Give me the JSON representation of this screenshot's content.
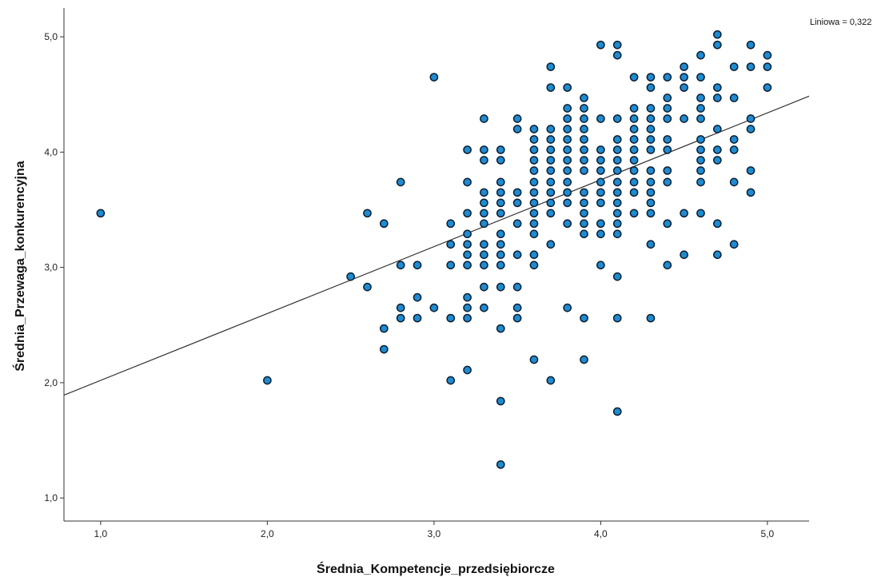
{
  "chart_data": {
    "type": "scatter",
    "xlabel": "Średnia_Kompetencje_przedsiębiorcze",
    "ylabel": "Średnia_Przewaga_konkurencyjna",
    "xlim": [
      0.78,
      5.25
    ],
    "ylim": [
      0.8,
      5.25
    ],
    "x_ticks": [
      "1,0",
      "2,0",
      "3,0",
      "4,0",
      "5,0"
    ],
    "y_ticks": [
      "1,0",
      "2,0",
      "3,0",
      "4,0",
      "5,0"
    ],
    "grid": false,
    "fit_line": {
      "label": "Liniowa = 0,322",
      "intercept": 1.44,
      "slope": 0.58
    },
    "marker_color": "#1f8bd0",
    "marker_edge": "#0a1f33",
    "line_color": "#333333",
    "points": [
      [
        1.0,
        3.47
      ],
      [
        2.0,
        2.02
      ],
      [
        2.5,
        2.92
      ],
      [
        2.6,
        3.47
      ],
      [
        2.6,
        2.83
      ],
      [
        2.7,
        3.38
      ],
      [
        2.7,
        2.47
      ],
      [
        2.7,
        2.29
      ],
      [
        2.8,
        3.74
      ],
      [
        2.8,
        3.02
      ],
      [
        2.8,
        2.65
      ],
      [
        2.8,
        2.56
      ],
      [
        2.9,
        3.02
      ],
      [
        2.9,
        2.74
      ],
      [
        2.9,
        2.56
      ],
      [
        3.0,
        4.65
      ],
      [
        3.0,
        2.65
      ],
      [
        3.1,
        3.38
      ],
      [
        3.1,
        3.2
      ],
      [
        3.1,
        3.02
      ],
      [
        3.1,
        2.56
      ],
      [
        3.1,
        2.02
      ],
      [
        3.2,
        4.02
      ],
      [
        3.2,
        3.74
      ],
      [
        3.2,
        3.47
      ],
      [
        3.2,
        3.29
      ],
      [
        3.2,
        3.2
      ],
      [
        3.2,
        3.11
      ],
      [
        3.2,
        3.02
      ],
      [
        3.2,
        2.74
      ],
      [
        3.2,
        2.65
      ],
      [
        3.2,
        2.56
      ],
      [
        3.2,
        2.11
      ],
      [
        3.3,
        4.29
      ],
      [
        3.3,
        4.02
      ],
      [
        3.3,
        3.93
      ],
      [
        3.3,
        3.65
      ],
      [
        3.3,
        3.56
      ],
      [
        3.3,
        3.47
      ],
      [
        3.3,
        3.38
      ],
      [
        3.3,
        3.2
      ],
      [
        3.3,
        3.11
      ],
      [
        3.3,
        3.02
      ],
      [
        3.3,
        2.83
      ],
      [
        3.3,
        2.65
      ],
      [
        3.4,
        4.02
      ],
      [
        3.4,
        3.93
      ],
      [
        3.4,
        3.74
      ],
      [
        3.4,
        3.65
      ],
      [
        3.4,
        3.56
      ],
      [
        3.4,
        3.47
      ],
      [
        3.4,
        3.29
      ],
      [
        3.4,
        3.2
      ],
      [
        3.4,
        3.11
      ],
      [
        3.4,
        3.02
      ],
      [
        3.4,
        2.83
      ],
      [
        3.4,
        2.47
      ],
      [
        3.4,
        1.84
      ],
      [
        3.4,
        1.29
      ],
      [
        3.5,
        4.29
      ],
      [
        3.5,
        4.2
      ],
      [
        3.5,
        3.65
      ],
      [
        3.5,
        3.56
      ],
      [
        3.5,
        3.38
      ],
      [
        3.5,
        3.11
      ],
      [
        3.5,
        2.83
      ],
      [
        3.5,
        2.65
      ],
      [
        3.5,
        2.56
      ],
      [
        3.6,
        4.2
      ],
      [
        3.6,
        4.11
      ],
      [
        3.6,
        4.02
      ],
      [
        3.6,
        3.93
      ],
      [
        3.6,
        3.84
      ],
      [
        3.6,
        3.74
      ],
      [
        3.6,
        3.65
      ],
      [
        3.6,
        3.56
      ],
      [
        3.6,
        3.47
      ],
      [
        3.6,
        3.38
      ],
      [
        3.6,
        3.29
      ],
      [
        3.6,
        3.11
      ],
      [
        3.6,
        3.02
      ],
      [
        3.6,
        2.2
      ],
      [
        3.7,
        4.74
      ],
      [
        3.7,
        4.56
      ],
      [
        3.7,
        4.2
      ],
      [
        3.7,
        4.11
      ],
      [
        3.7,
        4.02
      ],
      [
        3.7,
        3.93
      ],
      [
        3.7,
        3.84
      ],
      [
        3.7,
        3.74
      ],
      [
        3.7,
        3.65
      ],
      [
        3.7,
        3.56
      ],
      [
        3.7,
        3.47
      ],
      [
        3.7,
        3.2
      ],
      [
        3.7,
        2.02
      ],
      [
        3.8,
        4.56
      ],
      [
        3.8,
        4.38
      ],
      [
        3.8,
        4.29
      ],
      [
        3.8,
        4.2
      ],
      [
        3.8,
        4.11
      ],
      [
        3.8,
        4.02
      ],
      [
        3.8,
        3.93
      ],
      [
        3.8,
        3.84
      ],
      [
        3.8,
        3.74
      ],
      [
        3.8,
        3.65
      ],
      [
        3.8,
        3.56
      ],
      [
        3.8,
        3.38
      ],
      [
        3.8,
        2.65
      ],
      [
        3.9,
        4.47
      ],
      [
        3.9,
        4.38
      ],
      [
        3.9,
        4.29
      ],
      [
        3.9,
        4.2
      ],
      [
        3.9,
        4.11
      ],
      [
        3.9,
        4.02
      ],
      [
        3.9,
        3.93
      ],
      [
        3.9,
        3.84
      ],
      [
        3.9,
        3.65
      ],
      [
        3.9,
        3.56
      ],
      [
        3.9,
        3.47
      ],
      [
        3.9,
        3.38
      ],
      [
        3.9,
        3.29
      ],
      [
        3.9,
        2.56
      ],
      [
        3.9,
        2.2
      ],
      [
        4.0,
        4.93
      ],
      [
        4.0,
        4.29
      ],
      [
        4.0,
        4.02
      ],
      [
        4.0,
        3.93
      ],
      [
        4.0,
        3.84
      ],
      [
        4.0,
        3.74
      ],
      [
        4.0,
        3.65
      ],
      [
        4.0,
        3.56
      ],
      [
        4.0,
        3.38
      ],
      [
        4.0,
        3.29
      ],
      [
        4.0,
        3.02
      ],
      [
        4.1,
        4.93
      ],
      [
        4.1,
        4.84
      ],
      [
        4.1,
        4.29
      ],
      [
        4.1,
        4.11
      ],
      [
        4.1,
        4.02
      ],
      [
        4.1,
        3.93
      ],
      [
        4.1,
        3.84
      ],
      [
        4.1,
        3.74
      ],
      [
        4.1,
        3.65
      ],
      [
        4.1,
        3.56
      ],
      [
        4.1,
        3.47
      ],
      [
        4.1,
        3.38
      ],
      [
        4.1,
        3.29
      ],
      [
        4.1,
        2.92
      ],
      [
        4.1,
        2.56
      ],
      [
        4.1,
        1.75
      ],
      [
        4.2,
        4.65
      ],
      [
        4.2,
        4.38
      ],
      [
        4.2,
        4.29
      ],
      [
        4.2,
        4.2
      ],
      [
        4.2,
        4.11
      ],
      [
        4.2,
        4.02
      ],
      [
        4.2,
        3.93
      ],
      [
        4.2,
        3.84
      ],
      [
        4.2,
        3.74
      ],
      [
        4.2,
        3.65
      ],
      [
        4.2,
        3.47
      ],
      [
        4.3,
        4.65
      ],
      [
        4.3,
        4.56
      ],
      [
        4.3,
        4.38
      ],
      [
        4.3,
        4.29
      ],
      [
        4.3,
        4.2
      ],
      [
        4.3,
        4.11
      ],
      [
        4.3,
        4.02
      ],
      [
        4.3,
        3.84
      ],
      [
        4.3,
        3.74
      ],
      [
        4.3,
        3.65
      ],
      [
        4.3,
        3.56
      ],
      [
        4.3,
        3.47
      ],
      [
        4.3,
        3.2
      ],
      [
        4.3,
        2.56
      ],
      [
        4.4,
        4.65
      ],
      [
        4.4,
        4.47
      ],
      [
        4.4,
        4.38
      ],
      [
        4.4,
        4.29
      ],
      [
        4.4,
        4.11
      ],
      [
        4.4,
        4.02
      ],
      [
        4.4,
        3.84
      ],
      [
        4.4,
        3.74
      ],
      [
        4.4,
        3.38
      ],
      [
        4.4,
        3.02
      ],
      [
        4.5,
        4.74
      ],
      [
        4.5,
        4.65
      ],
      [
        4.5,
        4.56
      ],
      [
        4.5,
        4.29
      ],
      [
        4.5,
        3.47
      ],
      [
        4.5,
        3.11
      ],
      [
        4.6,
        4.84
      ],
      [
        4.6,
        4.65
      ],
      [
        4.6,
        4.47
      ],
      [
        4.6,
        4.38
      ],
      [
        4.6,
        4.29
      ],
      [
        4.6,
        4.11
      ],
      [
        4.6,
        4.02
      ],
      [
        4.6,
        3.93
      ],
      [
        4.6,
        3.84
      ],
      [
        4.6,
        3.74
      ],
      [
        4.6,
        3.47
      ],
      [
        4.7,
        5.02
      ],
      [
        4.7,
        4.93
      ],
      [
        4.7,
        4.56
      ],
      [
        4.7,
        4.47
      ],
      [
        4.7,
        4.2
      ],
      [
        4.7,
        4.02
      ],
      [
        4.7,
        3.93
      ],
      [
        4.7,
        3.38
      ],
      [
        4.7,
        3.11
      ],
      [
        4.8,
        4.74
      ],
      [
        4.8,
        4.47
      ],
      [
        4.8,
        4.11
      ],
      [
        4.8,
        4.02
      ],
      [
        4.8,
        3.74
      ],
      [
        4.8,
        3.2
      ],
      [
        4.9,
        4.93
      ],
      [
        4.9,
        4.74
      ],
      [
        4.9,
        4.29
      ],
      [
        4.9,
        4.2
      ],
      [
        4.9,
        3.84
      ],
      [
        4.9,
        3.65
      ],
      [
        5.0,
        4.84
      ],
      [
        5.0,
        4.74
      ],
      [
        5.0,
        4.56
      ]
    ]
  }
}
